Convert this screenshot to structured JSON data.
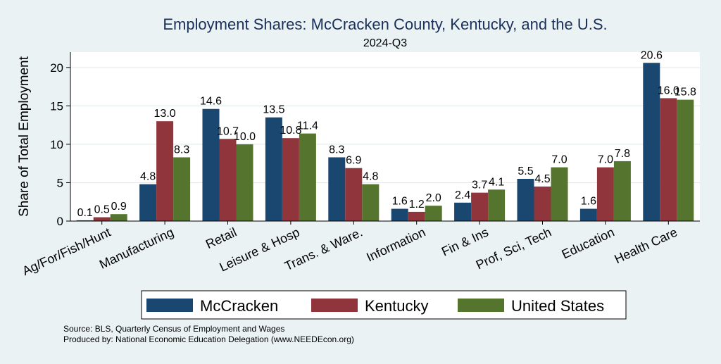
{
  "chart_data": {
    "type": "bar",
    "title": "Employment Shares: McCracken County, Kentucky, and the U.S.",
    "subtitle": "2024-Q3",
    "xlabel": "",
    "ylabel": "Share of Total Employment",
    "ylim": [
      0,
      22
    ],
    "yticks": [
      0,
      5,
      10,
      15,
      20
    ],
    "grid": true,
    "legend_position": "bottom",
    "categories": [
      "Ag/For/Fish/Hunt",
      "Manufacturing",
      "Retail",
      "Leisure & Hosp",
      "Trans. & Ware.",
      "Information",
      "Fin & Ins",
      "Prof, Sci, Tech",
      "Education",
      "Health Care"
    ],
    "series": [
      {
        "name": "McCracken",
        "color": "#1a476f",
        "values": [
          0.1,
          4.8,
          14.6,
          13.5,
          8.3,
          1.6,
          2.4,
          5.5,
          1.6,
          20.6
        ],
        "labels": [
          "0.1",
          "4.8",
          "14.6",
          "13.5",
          "8.3",
          "1.6",
          "2.4",
          "5.5",
          "1.6",
          "20.6"
        ]
      },
      {
        "name": "Kentucky",
        "color": "#90353b",
        "values": [
          0.5,
          13.0,
          10.7,
          10.8,
          6.9,
          1.2,
          3.7,
          4.5,
          7.0,
          16.0
        ],
        "labels": [
          "0.5",
          "13.0",
          "10.7",
          "10.8",
          "6.9",
          "1.2",
          "3.7",
          "4.5",
          "7.0",
          "16.0"
        ]
      },
      {
        "name": "United States",
        "color": "#55752f",
        "values": [
          0.9,
          8.3,
          10.0,
          11.4,
          4.8,
          2.0,
          4.1,
          7.0,
          7.8,
          15.8
        ],
        "labels": [
          "0.9",
          "8.3",
          "10.0",
          "11.4",
          "4.8",
          "2.0",
          "4.1",
          "7.0",
          "7.8",
          "15.8"
        ]
      }
    ],
    "notes": [
      "Source: BLS, Quarterly Census of Employment and Wages",
      "Produced by: National Economic Education Delegation (www.NEEDEcon.org)"
    ]
  }
}
